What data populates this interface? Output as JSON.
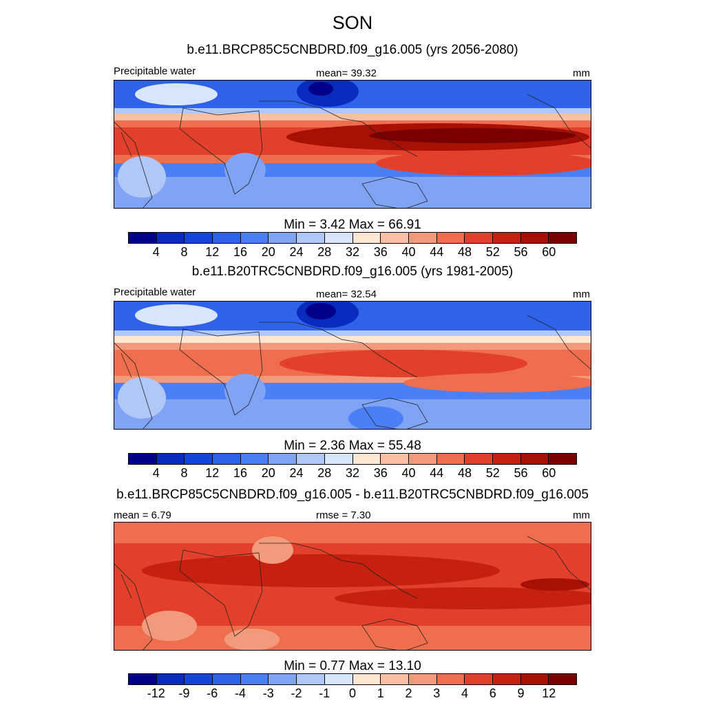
{
  "chart_data": {
    "type": "heatmap",
    "title": "SON",
    "panels": [
      {
        "title": "b.e11.BRCP85C5CNBDRD.f09_g16.005 (yrs 2056-2080)",
        "left_label": "Precipitable water",
        "center_label": "mean=  39.32",
        "right_label": "mm",
        "min_max": "Min =   3.42 Max =  66.91",
        "levels": [
          "4",
          "8",
          "12",
          "16",
          "20",
          "24",
          "28",
          "32",
          "36",
          "40",
          "44",
          "48",
          "52",
          "56",
          "60"
        ],
        "colors": [
          "#00008b",
          "#0a2cbc",
          "#1544d8",
          "#2f62ea",
          "#4a7ff5",
          "#7fa4f5",
          "#b0c8f8",
          "#d8e6fb",
          "#fde6d2",
          "#f9c0a4",
          "#f49a7c",
          "#ee6e4e",
          "#e2402a",
          "#c62010",
          "#a81006",
          "#7a0000"
        ]
      },
      {
        "title": "b.e11.B20TRC5CNBDRD.f09_g16.005 (yrs 1981-2005)",
        "left_label": "Precipitable water",
        "center_label": "mean=  32.54",
        "right_label": "mm",
        "min_max": "Min =   2.36 Max =  55.48",
        "levels": [
          "4",
          "8",
          "12",
          "16",
          "20",
          "24",
          "28",
          "32",
          "36",
          "40",
          "44",
          "48",
          "52",
          "56",
          "60"
        ],
        "colors": [
          "#00008b",
          "#0a2cbc",
          "#1544d8",
          "#2f62ea",
          "#4a7ff5",
          "#7fa4f5",
          "#b0c8f8",
          "#d8e6fb",
          "#fde6d2",
          "#f9c0a4",
          "#f49a7c",
          "#ee6e4e",
          "#e2402a",
          "#c62010",
          "#a81006",
          "#7a0000"
        ]
      },
      {
        "title": "b.e11.BRCP85C5CNBDRD.f09_g16.005 - b.e11.B20TRC5CNBDRD.f09_g16.005",
        "left_label": "mean =   6.79",
        "center_label": "rmse =   7.30",
        "right_label": "mm",
        "min_max": "Min =   0.77 Max =  13.10",
        "levels": [
          "-12",
          "-9",
          "-6",
          "-4",
          "-3",
          "-2",
          "-1",
          "0",
          "1",
          "2",
          "3",
          "4",
          "6",
          "9",
          "12"
        ],
        "colors": [
          "#00008b",
          "#0a2cbc",
          "#1544d8",
          "#2f62ea",
          "#4a7ff5",
          "#7fa4f5",
          "#b0c8f8",
          "#d8e6fb",
          "#fde6d2",
          "#f9c0a4",
          "#f49a7c",
          "#ee6e4e",
          "#e2402a",
          "#c62010",
          "#a81006",
          "#7a0000"
        ]
      }
    ]
  }
}
